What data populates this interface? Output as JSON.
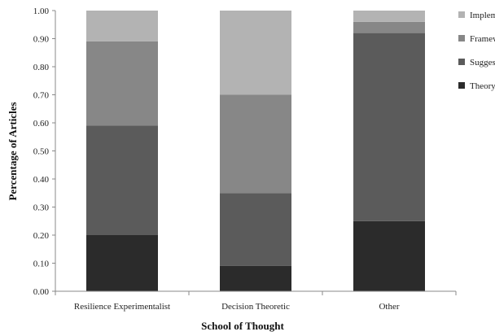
{
  "chart_data": {
    "type": "bar",
    "stacked": true,
    "categories": [
      "Resilience Experimentalist",
      "Decision Theoretic",
      "Other"
    ],
    "series": [
      {
        "name": "Theory",
        "color": "#2b2b2b",
        "values": [
          0.2,
          0.09,
          0.25
        ]
      },
      {
        "name": "Suggest",
        "color": "#5b5b5b",
        "values": [
          0.39,
          0.26,
          0.67
        ]
      },
      {
        "name": "Framework",
        "color": "#878787",
        "values": [
          0.3,
          0.35,
          0.04
        ]
      },
      {
        "name": "Implement",
        "color": "#b3b3b3",
        "values": [
          0.11,
          0.3,
          0.04
        ]
      }
    ],
    "yticks": [
      "0.00",
      "0.10",
      "0.20",
      "0.30",
      "0.40",
      "0.50",
      "0.60",
      "0.70",
      "0.80",
      "0.90",
      "1.00"
    ],
    "xlabel": "School of Thought",
    "ylabel": "Percentage of Articles",
    "ylim": [
      0,
      1
    ],
    "grid": false,
    "legend": {
      "placement": "right",
      "order": [
        "Implement",
        "Framework",
        "Suggest",
        "Theory"
      ]
    }
  }
}
